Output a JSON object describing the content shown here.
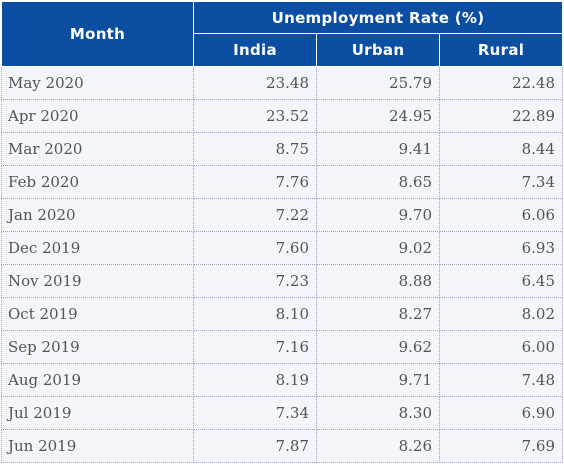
{
  "chart_data": {
    "type": "table",
    "header": {
      "month": "Month",
      "group": "Unemployment Rate (%)",
      "columns": [
        "India",
        "Urban",
        "Rural"
      ]
    },
    "rows": [
      {
        "month": "May 2020",
        "values": [
          "23.48",
          "25.79",
          "22.48"
        ]
      },
      {
        "month": "Apr 2020",
        "values": [
          "23.52",
          "24.95",
          "22.89"
        ]
      },
      {
        "month": "Mar 2020",
        "values": [
          "8.75",
          "9.41",
          "8.44"
        ]
      },
      {
        "month": "Feb 2020",
        "values": [
          "7.76",
          "8.65",
          "7.34"
        ]
      },
      {
        "month": "Jan 2020",
        "values": [
          "7.22",
          "9.70",
          "6.06"
        ]
      },
      {
        "month": "Dec 2019",
        "values": [
          "7.60",
          "9.02",
          "6.93"
        ]
      },
      {
        "month": "Nov 2019",
        "values": [
          "7.23",
          "8.88",
          "6.45"
        ]
      },
      {
        "month": "Oct 2019",
        "values": [
          "8.10",
          "8.27",
          "8.02"
        ]
      },
      {
        "month": "Sep 2019",
        "values": [
          "7.16",
          "9.62",
          "6.00"
        ]
      },
      {
        "month": "Aug 2019",
        "values": [
          "8.19",
          "9.71",
          "7.48"
        ]
      },
      {
        "month": "Jul 2019",
        "values": [
          "7.34",
          "8.30",
          "6.90"
        ]
      },
      {
        "month": "Jun 2019",
        "values": [
          "7.87",
          "8.26",
          "7.69"
        ]
      }
    ]
  },
  "colors": {
    "header_bg": "#0b4ea2",
    "header_text": "#ffffff",
    "cell_bg": "#f3f5fa",
    "cell_text": "#4f5659",
    "grid": "#9ca3c4"
  }
}
